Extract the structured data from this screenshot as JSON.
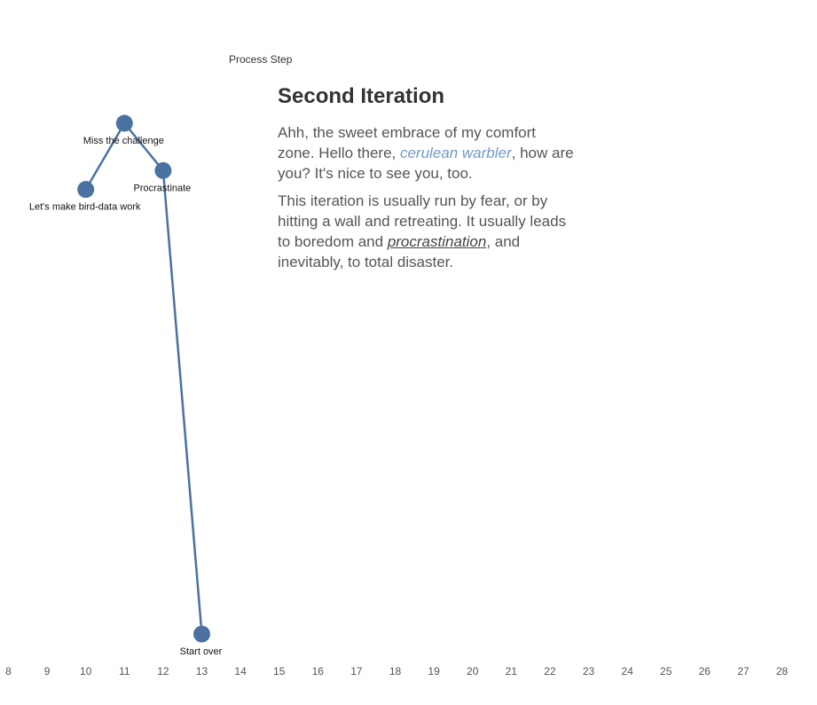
{
  "chart_data": {
    "type": "line",
    "xlabel": "Process Step",
    "ylabel": "",
    "xlim": [
      8,
      28
    ],
    "x_ticks": [
      8,
      9,
      10,
      11,
      12,
      13,
      14,
      15,
      16,
      17,
      18,
      19,
      20,
      21,
      22,
      23,
      24,
      25,
      26,
      27,
      28
    ],
    "series": [
      {
        "points": [
          {
            "x": 10,
            "y": 2.3,
            "label": "Let's make bird-data work"
          },
          {
            "x": 11,
            "y": 3.0,
            "label": "Miss the challenge"
          },
          {
            "x": 12,
            "y": 2.5,
            "label": "Procrastinate"
          },
          {
            "x": 13,
            "y": -2.4,
            "label": "Start over"
          }
        ]
      }
    ],
    "ylim": [
      -2.4,
      3.0
    ],
    "grid": false,
    "colors": {
      "line": "#4a72a0",
      "point": "#4a72a0"
    }
  },
  "story": {
    "title": "Second Iteration",
    "p1_a": "Ahh, the sweet embrace of my comfort zone. Hello there, ",
    "p1_bird": "cerulean warbler",
    "p1_b": ", how are you? It's nice to see you, too.",
    "p2_a": "This iteration is usually run by fear, or by hitting a wall and retreating. It usually leads to boredom and ",
    "p2_link": "procrastination",
    "p2_b": ", and inevitably, to total disaster."
  }
}
